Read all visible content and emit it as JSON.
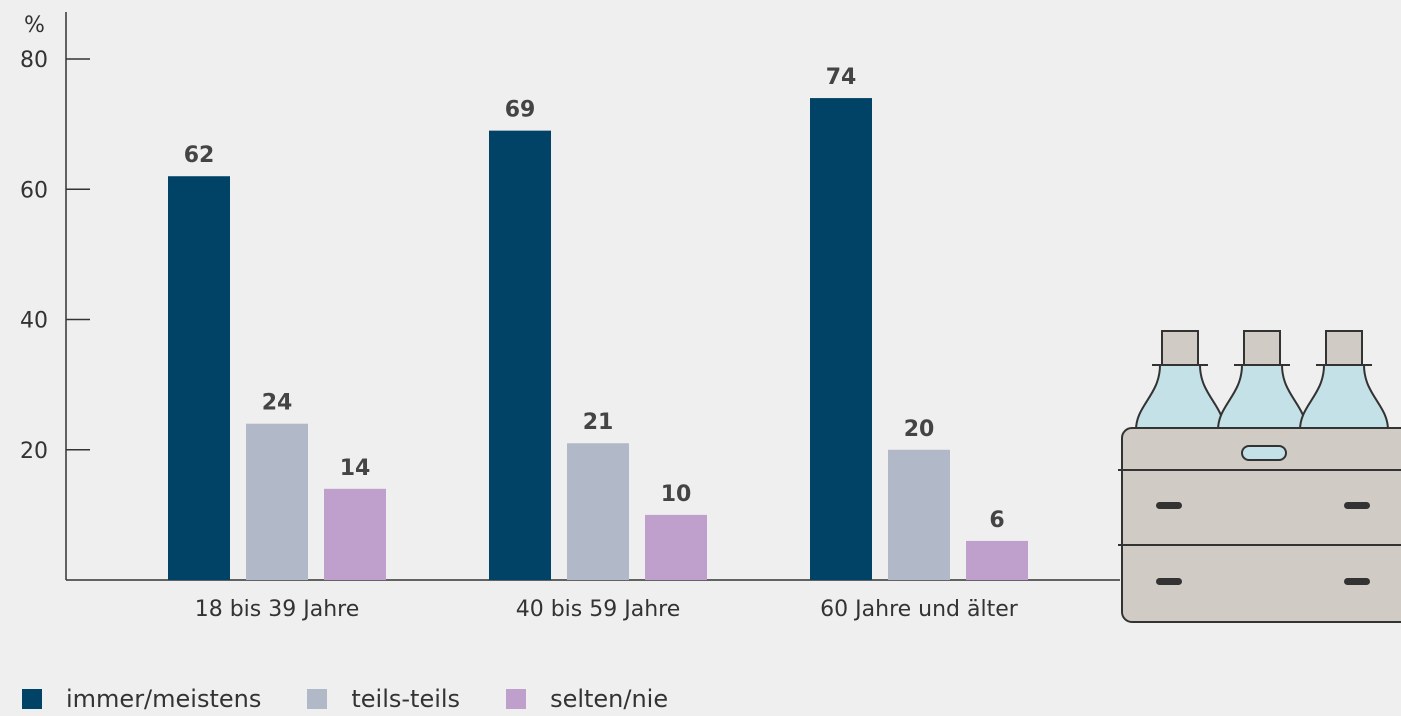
{
  "chart_data": {
    "type": "bar",
    "ylabel": "%",
    "ylim": [
      0,
      80
    ],
    "yticks": [
      20,
      40,
      60,
      80
    ],
    "categories": [
      "18 bis 39 Jahre",
      "40 bis 59 Jahre",
      "60 Jahre und älter"
    ],
    "series": [
      {
        "name": "immer/meistens",
        "color": "#004366",
        "values": [
          62,
          69,
          74
        ]
      },
      {
        "name": "teils-teils",
        "color": "#b1b9c8",
        "values": [
          24,
          21,
          20
        ]
      },
      {
        "name": "selten/nie",
        "color": "#bf9fcc",
        "values": [
          14,
          10,
          6
        ]
      }
    ],
    "legend_position": "bottom-left",
    "grid": false
  }
}
